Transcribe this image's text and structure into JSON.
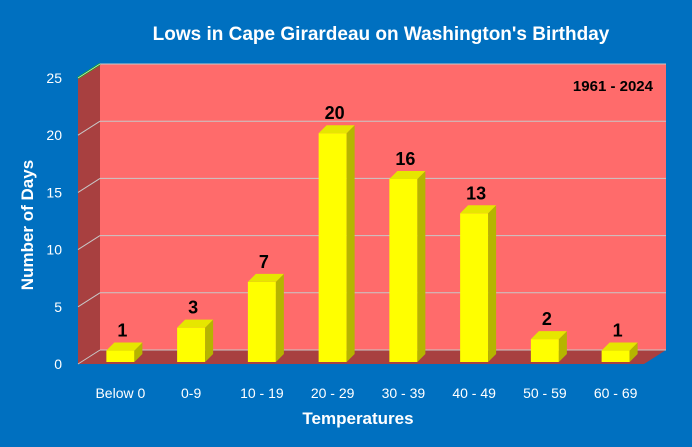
{
  "chart_data": {
    "type": "bar",
    "title": "Lows in Cape Girardeau on Washington's Birthday",
    "period": "1961 - 2024",
    "xlabel": "Temperatures",
    "ylabel": "Number of Days",
    "categories": [
      "Below 0",
      "0-9",
      "10 - 19",
      "20 - 29",
      "30 - 39",
      "40 - 49",
      "50 - 59",
      "60 - 69"
    ],
    "values": [
      1,
      3,
      7,
      20,
      16,
      13,
      2,
      1
    ],
    "ylim": [
      0,
      25
    ],
    "yticks": [
      0,
      5,
      10,
      15,
      20,
      25
    ],
    "grid": true,
    "legend": "none",
    "colors": {
      "background": "#0070c0",
      "plot_back": "#ff6b6b",
      "plot_side": "#a84040",
      "plot_floor": "#a84040",
      "bar_front": "#ffff00",
      "bar_side": "#b5b500",
      "bar_top": "#e6e600",
      "grid": "#c8c8c8"
    }
  }
}
